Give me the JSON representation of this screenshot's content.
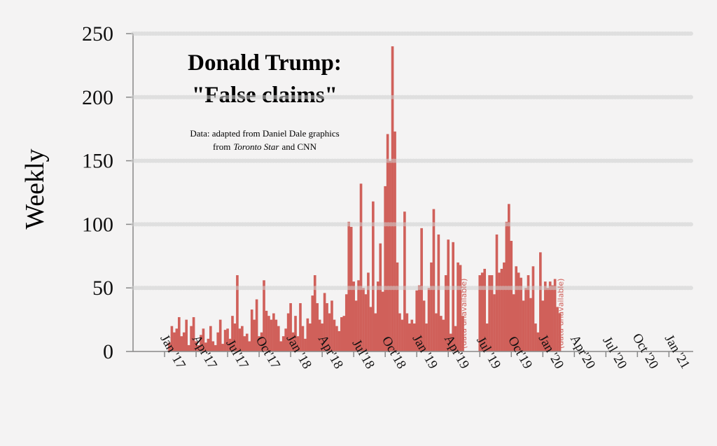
{
  "chart_data": {
    "type": "bar",
    "title": [
      "Donald Trump:",
      "\"False claims\""
    ],
    "subtitle": [
      "Data: adapted from Daniel Dale graphics",
      "from",
      "Toronto Star",
      "and CNN"
    ],
    "ylabel": "Weekly",
    "annotations": [
      "(data unavailable)",
      "(data unavailable)"
    ],
    "color": "#d0605a",
    "grid": true,
    "ylim": [
      0,
      250
    ],
    "yticks": [
      0,
      50,
      100,
      150,
      200,
      250
    ],
    "xlim": [
      -13,
      218
    ],
    "xticks": [
      {
        "value": 0,
        "label": "Jan '17"
      },
      {
        "value": 13,
        "label": "Apr'17"
      },
      {
        "value": 26,
        "label": "Jul'17"
      },
      {
        "value": 39,
        "label": "Oct'17"
      },
      {
        "value": 52,
        "label": "Jan '18"
      },
      {
        "value": 65,
        "label": "Apr'18"
      },
      {
        "value": 78,
        "label": "Jul'18"
      },
      {
        "value": 91,
        "label": "Oct'18"
      },
      {
        "value": 104,
        "label": "Jan '19"
      },
      {
        "value": 117,
        "label": "Apr'19"
      },
      {
        "value": 130,
        "label": "Jul '19"
      },
      {
        "value": 143,
        "label": "Oct'19"
      },
      {
        "value": 156,
        "label": "Jan '20"
      },
      {
        "value": 169,
        "label": "Apr'20"
      },
      {
        "value": 182,
        "label": "Jul '20"
      },
      {
        "value": 195,
        "label": "Oct '20"
      },
      {
        "value": 208,
        "label": "Jan '21"
      }
    ],
    "x": [
      2,
      3,
      4,
      5,
      6,
      7,
      8,
      9,
      10,
      11,
      12,
      13,
      14,
      15,
      16,
      17,
      18,
      19,
      20,
      21,
      22,
      23,
      24,
      25,
      26,
      27,
      28,
      29,
      30,
      31,
      32,
      33,
      34,
      35,
      36,
      37,
      38,
      39,
      40,
      41,
      42,
      43,
      44,
      45,
      46,
      47,
      48,
      49,
      50,
      51,
      52,
      53,
      54,
      55,
      56,
      57,
      58,
      59,
      60,
      61,
      62,
      63,
      64,
      65,
      66,
      67,
      68,
      69,
      70,
      71,
      72,
      73,
      74,
      75,
      76,
      77,
      78,
      79,
      80,
      81,
      82,
      83,
      84,
      85,
      86,
      87,
      88,
      89,
      90,
      91,
      92,
      93,
      94,
      95,
      96,
      97,
      98,
      99,
      100,
      101,
      102,
      103,
      104,
      105,
      106,
      107,
      108,
      109,
      110,
      111,
      112,
      113,
      114,
      115,
      116,
      117,
      118,
      119,
      120,
      121,
      122,
      123,
      124,
      125,
      126,
      127,
      128,
      129,
      130,
      131,
      132,
      133,
      134,
      135,
      136,
      137,
      138,
      139,
      140,
      141,
      142,
      143,
      144,
      145,
      146,
      147,
      148,
      149,
      150,
      151,
      152,
      153,
      154,
      155,
      156,
      157,
      158,
      159,
      160,
      161,
      162,
      163
    ],
    "values": [
      7,
      20,
      15,
      18,
      27,
      12,
      15,
      25,
      5,
      20,
      27,
      8,
      5,
      13,
      18,
      7,
      10,
      20,
      8,
      5,
      15,
      25,
      6,
      17,
      18,
      10,
      28,
      22,
      60,
      18,
      20,
      12,
      14,
      8,
      33,
      25,
      41,
      12,
      15,
      56,
      32,
      28,
      25,
      30,
      25,
      20,
      8,
      12,
      18,
      30,
      38,
      15,
      28,
      12,
      38,
      20,
      10,
      26,
      22,
      44,
      60,
      38,
      25,
      22,
      46,
      38,
      30,
      40,
      25,
      20,
      16,
      27,
      28,
      45,
      102,
      98,
      55,
      40,
      56,
      132,
      50,
      45,
      62,
      35,
      118,
      30,
      55,
      85,
      47,
      130,
      171,
      150,
      240,
      173,
      70,
      30,
      25,
      110,
      30,
      22,
      25,
      22,
      48,
      52,
      97,
      40,
      22,
      50,
      70,
      112,
      30,
      92,
      28,
      25,
      60,
      88,
      14,
      86,
      20,
      70,
      68,
      28,
      null,
      null,
      null,
      null,
      null,
      null,
      60,
      62,
      65,
      22,
      60,
      60,
      45,
      92,
      62,
      65,
      70,
      102,
      116,
      87,
      45,
      67,
      62,
      58,
      40,
      50,
      60,
      42,
      67,
      22,
      15,
      78,
      40,
      55,
      50,
      55,
      52,
      57,
      35,
      30
    ]
  }
}
